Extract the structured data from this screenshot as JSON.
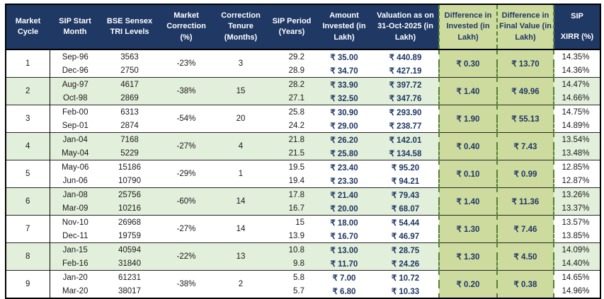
{
  "colors": {
    "header_bg": "#1F3864",
    "header_text": "#FFFFFF",
    "diff_block_bg": "#CEDB9F",
    "stripe_bg": "#E2EFDA",
    "dashed_border": "#548235",
    "value_text": "#1F3864"
  },
  "header": {
    "market_cycle": "Market Cycle",
    "sip_start_month": "SIP Start Month",
    "bse_sensex": "BSE Sensex TRI Levels",
    "market_correction": "Market Correction (%)",
    "correction_tenure": "Correction Tenure (Months)",
    "sip_period": "SIP Period (Years)",
    "amount_invested": "Amount Invested (in Lakh)",
    "valuation": "Valuation as on 31-Oct-2025 (in Lakh)",
    "diff_invested": "Difference in Invested (in Lakh)",
    "diff_final": "Difference in Final Value (in Lakh)",
    "sip_xirr_line1": "SIP",
    "sip_xirr_line2": "XIRR (%)"
  },
  "cycles": [
    {
      "cycle": "1",
      "correction": "-23%",
      "tenure": "3",
      "diff_invested": "₹ 0.30",
      "diff_final": "₹ 13.70",
      "rows": [
        {
          "month": "Sep-96",
          "level": "3563",
          "period": "29.2",
          "invested": "₹ 35.00",
          "valuation": "₹ 440.89",
          "xirr": "14.35%"
        },
        {
          "month": "Dec-96",
          "level": "2750",
          "period": "28.9",
          "invested": "₹ 34.70",
          "valuation": "₹ 427.19",
          "xirr": "14.36%"
        }
      ]
    },
    {
      "cycle": "2",
      "correction": "-38%",
      "tenure": "15",
      "diff_invested": "₹ 1.40",
      "diff_final": "₹ 49.96",
      "rows": [
        {
          "month": "Aug-97",
          "level": "4617",
          "period": "28.2",
          "invested": "₹ 33.90",
          "valuation": "₹ 397.72",
          "xirr": "14.47%"
        },
        {
          "month": "Oct-98",
          "level": "2869",
          "period": "27.1",
          "invested": "₹ 32.50",
          "valuation": "₹ 347.76",
          "xirr": "14.66%"
        }
      ]
    },
    {
      "cycle": "3",
      "correction": "-54%",
      "tenure": "20",
      "diff_invested": "₹ 1.90",
      "diff_final": "₹ 55.13",
      "rows": [
        {
          "month": "Feb-00",
          "level": "6313",
          "period": "25.8",
          "invested": "₹ 30.90",
          "valuation": "₹ 293.90",
          "xirr": "14.75%"
        },
        {
          "month": "Sep-01",
          "level": "2874",
          "period": "24.2",
          "invested": "₹ 29.00",
          "valuation": "₹ 238.77",
          "xirr": "14.89%"
        }
      ]
    },
    {
      "cycle": "4",
      "correction": "-27%",
      "tenure": "4",
      "diff_invested": "₹ 0.40",
      "diff_final": "₹ 7.43",
      "rows": [
        {
          "month": "Jan-04",
          "level": "7168",
          "period": "21.8",
          "invested": "₹ 26.20",
          "valuation": "₹ 142.01",
          "xirr": "13.54%"
        },
        {
          "month": "May-04",
          "level": "5229",
          "period": "21.5",
          "invested": "₹ 25.80",
          "valuation": "₹ 134.58",
          "xirr": "13.48%"
        }
      ]
    },
    {
      "cycle": "5",
      "correction": "-29%",
      "tenure": "1",
      "diff_invested": "₹ 0.10",
      "diff_final": "₹ 0.99",
      "rows": [
        {
          "month": "May-06",
          "level": "15186",
          "period": "19.5",
          "invested": "₹ 23.40",
          "valuation": "₹ 95.20",
          "xirr": "12.85%"
        },
        {
          "month": "Jun-06",
          "level": "10790",
          "period": "19.4",
          "invested": "₹ 23.30",
          "valuation": "₹ 94.21",
          "xirr": "12.87%"
        }
      ]
    },
    {
      "cycle": "6",
      "correction": "-60%",
      "tenure": "14",
      "diff_invested": "₹ 1.40",
      "diff_final": "₹ 11.36",
      "rows": [
        {
          "month": "Jan-08",
          "level": "25756",
          "period": "17.8",
          "invested": "₹ 21.40",
          "valuation": "₹ 79.43",
          "xirr": "13.26%"
        },
        {
          "month": "Mar-09",
          "level": "10216",
          "period": "16.7",
          "invested": "₹ 20.00",
          "valuation": "₹ 68.07",
          "xirr": "13.37%"
        }
      ]
    },
    {
      "cycle": "7",
      "correction": "-27%",
      "tenure": "14",
      "diff_invested": "₹ 1.30",
      "diff_final": "₹ 7.46",
      "rows": [
        {
          "month": "Nov-10",
          "level": "26968",
          "period": "15",
          "invested": "₹ 18.00",
          "valuation": "₹ 54.44",
          "xirr": "13.57%"
        },
        {
          "month": "Dec-11",
          "level": "19759",
          "period": "13.9",
          "invested": "₹ 16.70",
          "valuation": "₹ 46.97",
          "xirr": "13.85%"
        }
      ]
    },
    {
      "cycle": "8",
      "correction": "-22%",
      "tenure": "13",
      "diff_invested": "₹ 1.30",
      "diff_final": "₹ 4.50",
      "rows": [
        {
          "month": "Jan-15",
          "level": "40594",
          "period": "10.8",
          "invested": "₹ 13.00",
          "valuation": "₹ 28.75",
          "xirr": "14.09%"
        },
        {
          "month": "Feb-16",
          "level": "31840",
          "period": "9.8",
          "invested": "₹ 11.70",
          "valuation": "₹ 24.26",
          "xirr": "14.40%"
        }
      ]
    },
    {
      "cycle": "9",
      "correction": "-38%",
      "tenure": "2",
      "diff_invested": "₹ 0.20",
      "diff_final": "₹ 0.38",
      "rows": [
        {
          "month": "Jan-20",
          "level": "61231",
          "period": "5.8",
          "invested": "₹ 7.00",
          "valuation": "₹ 10.72",
          "xirr": "14.65%"
        },
        {
          "month": "Mar-20",
          "level": "38017",
          "period": "5.7",
          "invested": "₹ 6.80",
          "valuation": "₹ 10.33",
          "xirr": "14.96%"
        }
      ]
    }
  ]
}
